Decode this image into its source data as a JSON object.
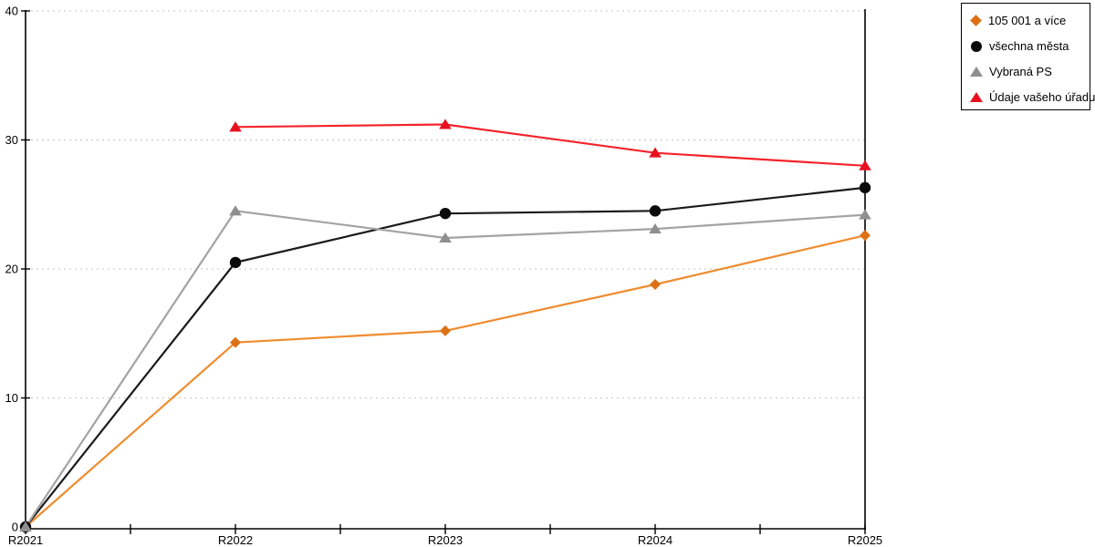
{
  "chart_data": {
    "type": "line",
    "x_labels": [
      "R2021",
      "R2022",
      "R2023",
      "R2024",
      "R2025"
    ],
    "x_values": [
      2021,
      2022,
      2023,
      2024,
      2025
    ],
    "x_minor_ticks": [
      2021.5,
      2022.5,
      2023.5,
      2024.5
    ],
    "yticks": [
      0,
      10,
      20,
      30,
      40
    ],
    "ylim": [
      0,
      40
    ],
    "grid": "horizontal-dashed",
    "legend_position": "top-right-outside",
    "grid_color": "#c4c4c4",
    "axis_color": "#000000",
    "series": [
      {
        "name": "105 001 a více",
        "marker": "diamond",
        "color": "#dd7015",
        "line_color": "#ef8c2e",
        "x": [
          2021,
          2022,
          2023,
          2024,
          2025
        ],
        "values": [
          0,
          14.3,
          15.2,
          18.8,
          22.6
        ]
      },
      {
        "name": "všechna města",
        "marker": "circle",
        "color": "#0a0a0a",
        "line_color": "#1a1a1a",
        "x": [
          2021,
          2022,
          2023,
          2024,
          2025
        ],
        "values": [
          0,
          20.5,
          24.3,
          24.5,
          26.3
        ]
      },
      {
        "name": "Vybraná PS",
        "marker": "triangle",
        "color": "#8f8f8f",
        "line_color": "#a3a3a3",
        "x": [
          2021,
          2022,
          2023,
          2024,
          2025
        ],
        "values": [
          0,
          24.5,
          22.4,
          23.1,
          24.2
        ]
      },
      {
        "name": "Údaje vašeho úřadu",
        "marker": "triangle",
        "color": "#e8101f",
        "line_color": "#f4232b",
        "x": [
          2022,
          2023,
          2024,
          2025
        ],
        "values": [
          31.0,
          31.2,
          29.0,
          28.0
        ]
      }
    ]
  }
}
